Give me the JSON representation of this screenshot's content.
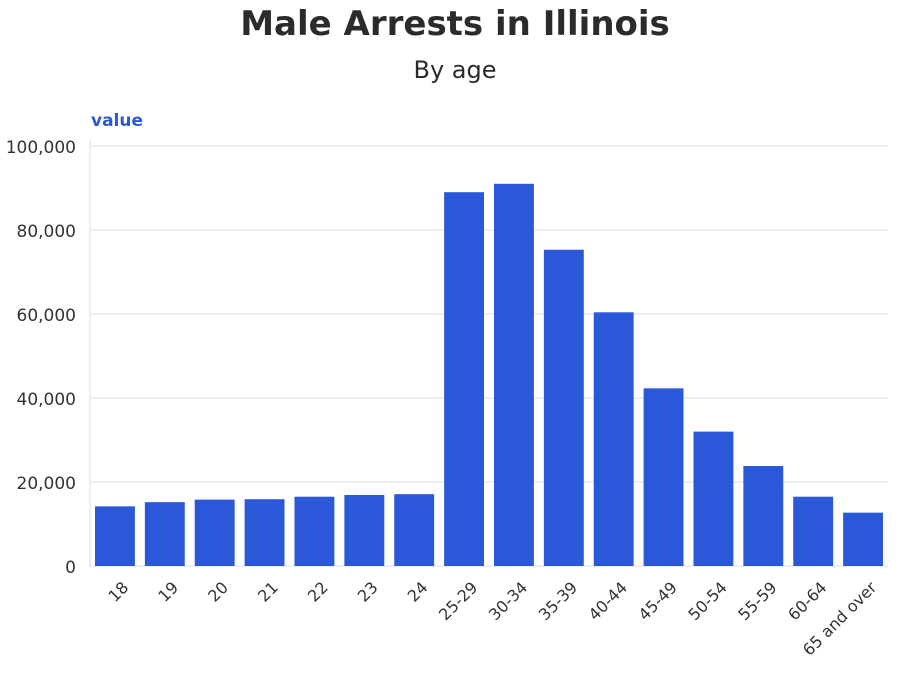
{
  "title": "Male Arrests in Illinois",
  "subtitle": "By age",
  "colors": {
    "bar": "#2b57d9",
    "grid": "#e8e8ee",
    "axis_label": "#2b57d9",
    "text": "#333333"
  },
  "chart_data": {
    "type": "bar",
    "title": "Male Arrests in Illinois",
    "subtitle": "By age",
    "xlabel": "",
    "ylabel": "value",
    "ylim": [
      0,
      100000
    ],
    "yticks": [
      0,
      20000,
      40000,
      60000,
      80000,
      100000
    ],
    "ytick_labels": [
      "0",
      "20,000",
      "40,000",
      "60,000",
      "80,000",
      "100,000"
    ],
    "grid": true,
    "categories": [
      "18",
      "19",
      "20",
      "21",
      "22",
      "23",
      "24",
      "25-29",
      "30-34",
      "35-39",
      "40-44",
      "45-49",
      "50-54",
      "55-59",
      "60-64",
      "65 and over"
    ],
    "values": [
      14200,
      15200,
      15800,
      15900,
      16500,
      16900,
      17100,
      89000,
      91000,
      75300,
      60400,
      42300,
      32000,
      23800,
      16500,
      12700
    ]
  }
}
